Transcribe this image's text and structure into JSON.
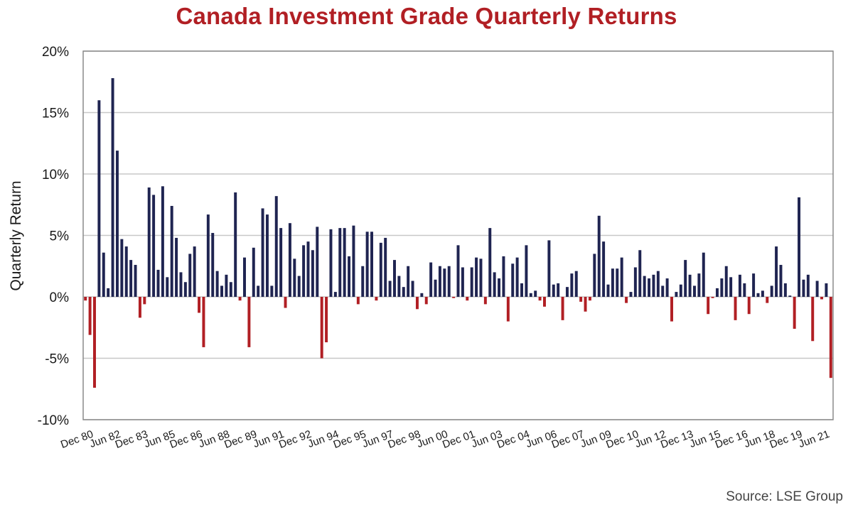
{
  "chart_data": {
    "type": "bar",
    "title": "Canada Investment Grade Quarterly Returns",
    "ylabel": "Quarterly Return",
    "xlabel": "",
    "ylim": [
      -10,
      20
    ],
    "yticks": [
      20,
      15,
      10,
      5,
      0,
      -5,
      -10
    ],
    "ytick_labels": [
      "20%",
      "15%",
      "10%",
      "5%",
      "0%",
      "-5%",
      "-10%"
    ],
    "x_tick_labels": [
      {
        "label": "Dec 80",
        "index": 0
      },
      {
        "label": "Jun 82",
        "index": 6
      },
      {
        "label": "Dec 83",
        "index": 12
      },
      {
        "label": "Jun 85",
        "index": 18
      },
      {
        "label": "Dec 86",
        "index": 24
      },
      {
        "label": "Jun 88",
        "index": 30
      },
      {
        "label": "Dec 89",
        "index": 36
      },
      {
        "label": "Jun 91",
        "index": 42
      },
      {
        "label": "Dec 92",
        "index": 48
      },
      {
        "label": "Jun 94",
        "index": 54
      },
      {
        "label": "Dec 95",
        "index": 60
      },
      {
        "label": "Jun 97",
        "index": 66
      },
      {
        "label": "Dec 98",
        "index": 72
      },
      {
        "label": "Jun 00",
        "index": 78
      },
      {
        "label": "Dec 01",
        "index": 84
      },
      {
        "label": "Jun 03",
        "index": 90
      },
      {
        "label": "Dec 04",
        "index": 96
      },
      {
        "label": "Jun 06",
        "index": 102
      },
      {
        "label": "Dec 07",
        "index": 108
      },
      {
        "label": "Jun 09",
        "index": 114
      },
      {
        "label": "Dec 10",
        "index": 120
      },
      {
        "label": "Jun 12",
        "index": 126
      },
      {
        "label": "Dec 13",
        "index": 132
      },
      {
        "label": "Jun 15",
        "index": 138
      },
      {
        "label": "Dec 16",
        "index": 144
      },
      {
        "label": "Jun 18",
        "index": 150
      },
      {
        "label": "Dec 19",
        "index": 156
      },
      {
        "label": "Jun 21",
        "index": 162
      }
    ],
    "values": [
      -0.3,
      -3.1,
      -7.4,
      16.0,
      3.6,
      0.7,
      17.8,
      11.9,
      4.7,
      4.1,
      3.0,
      2.6,
      -1.7,
      -0.6,
      8.9,
      8.3,
      2.2,
      9.0,
      1.6,
      7.4,
      4.8,
      2.0,
      1.2,
      3.5,
      4.1,
      -1.3,
      -4.1,
      6.7,
      5.2,
      2.1,
      0.9,
      1.8,
      1.2,
      8.5,
      -0.3,
      3.2,
      -4.1,
      4.0,
      0.9,
      7.2,
      6.7,
      0.9,
      8.2,
      5.6,
      -0.9,
      6.0,
      3.1,
      1.7,
      4.2,
      4.5,
      3.8,
      5.7,
      -5.0,
      -3.7,
      5.5,
      0.4,
      5.6,
      5.6,
      3.3,
      5.8,
      -0.6,
      2.5,
      5.3,
      5.3,
      -0.3,
      4.4,
      4.8,
      1.3,
      3.0,
      1.7,
      0.8,
      2.5,
      1.3,
      -1.0,
      0.3,
      -0.6,
      2.8,
      1.4,
      2.5,
      2.3,
      2.5,
      -0.1,
      4.2,
      2.4,
      -0.3,
      2.4,
      3.2,
      3.1,
      -0.6,
      5.6,
      2.0,
      1.5,
      3.3,
      -2.0,
      2.7,
      3.2,
      1.1,
      4.2,
      0.3,
      0.5,
      -0.3,
      -0.8,
      4.6,
      1.0,
      1.1,
      -1.9,
      0.8,
      1.9,
      2.1,
      -0.4,
      -1.2,
      -0.3,
      3.5,
      6.6,
      4.5,
      1.0,
      2.3,
      2.3,
      3.2,
      -0.5,
      0.4,
      2.4,
      3.8,
      1.7,
      1.5,
      1.8,
      2.1,
      0.9,
      1.5,
      -2.0,
      0.4,
      1.0,
      3.0,
      1.8,
      0.9,
      1.9,
      3.6,
      -1.4,
      -0.1,
      0.7,
      1.5,
      2.5,
      1.6,
      -1.9,
      1.8,
      1.1,
      -1.4,
      1.9,
      0.3,
      0.5,
      -0.5,
      0.9,
      4.1,
      2.6,
      1.1,
      0.1,
      -2.6,
      8.1,
      1.4,
      1.8,
      -3.6,
      1.3,
      -0.2,
      1.1,
      -6.6
    ],
    "colors": {
      "positive": "#1f2451",
      "negative": "#b11f24",
      "grid": "#c8c8c8",
      "axis": "#8a8a8a",
      "title": "#b11f24"
    },
    "grid": true,
    "legend": "none"
  },
  "source": "Source: LSE Group"
}
